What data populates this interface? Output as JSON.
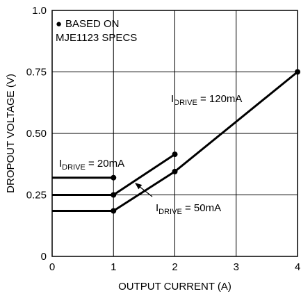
{
  "chart_data": {
    "type": "line",
    "title": "",
    "xlabel": "OUTPUT CURRENT (A)",
    "ylabel": "DROPOUT VOLTAGE (V)",
    "xlim": [
      0,
      4
    ],
    "ylim": [
      0,
      1.0
    ],
    "x_ticks": [
      0,
      1,
      2,
      3,
      4
    ],
    "y_ticks": [
      0,
      0.25,
      0.5,
      0.75,
      1.0
    ],
    "x_tick_labels": [
      "0",
      "1",
      "2",
      "3",
      "4"
    ],
    "y_tick_labels": [
      "0",
      "0.25",
      "0.50",
      "0.75",
      "1.0"
    ],
    "grid": true,
    "legend_note": {
      "marker": "●",
      "lines": [
        "BASED ON",
        "MJE1123 SPECS"
      ]
    },
    "series": [
      {
        "name": "IDRIVE = 20mA",
        "label": {
          "main": "I",
          "sub": "DRIVE",
          "rest": " = 20mA"
        },
        "points": [
          {
            "x": 0,
            "y": 0.32,
            "marker": false
          },
          {
            "x": 1,
            "y": 0.32,
            "marker": true
          }
        ]
      },
      {
        "name": "IDRIVE = 50mA",
        "label": {
          "main": "I",
          "sub": "DRIVE",
          "rest": " = 50mA"
        },
        "points": [
          {
            "x": 0,
            "y": 0.25,
            "marker": false
          },
          {
            "x": 1,
            "y": 0.25,
            "marker": true
          },
          {
            "x": 2,
            "y": 0.415,
            "marker": true
          }
        ]
      },
      {
        "name": "IDRIVE = 120mA",
        "label": {
          "main": "I",
          "sub": "DRIVE",
          "rest": " = 120mA"
        },
        "points": [
          {
            "x": 0,
            "y": 0.185,
            "marker": false
          },
          {
            "x": 1,
            "y": 0.185,
            "marker": true
          },
          {
            "x": 2,
            "y": 0.345,
            "marker": true
          },
          {
            "x": 4,
            "y": 0.75,
            "marker": true
          }
        ]
      }
    ]
  }
}
